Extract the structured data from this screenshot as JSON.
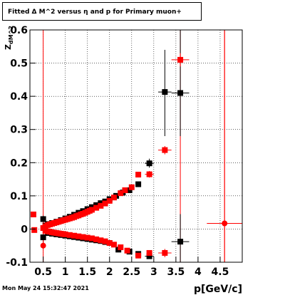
{
  "header": {
    "title": "Fitted Δ M^2 versus η and p for Primary muon+"
  },
  "footer": {
    "timestamp": "Mon May 24 15:32:47 2021"
  },
  "colors": {
    "black_series": "#000000",
    "red_series": "#ff0000",
    "grid": "#000000"
  },
  "chart_data": {
    "type": "scatter",
    "xlabel": "p[GeV/c]",
    "ylabel": "Z_{dM^2}",
    "xlim": [
      0.2,
      5.0
    ],
    "ylim": [
      -0.1,
      0.6
    ],
    "xticks": [
      0.5,
      1,
      1.5,
      2,
      2.5,
      3,
      3.5,
      4,
      4.5
    ],
    "xtick_labels": [
      "0.5",
      "1",
      "1.5",
      "2",
      "2.5",
      "3",
      "3.5",
      "4",
      "4.5"
    ],
    "yticks": [
      -0.1,
      0,
      0.1,
      0.2,
      0.3,
      0.4,
      0.5,
      0.6
    ],
    "ytick_labels": [
      "-0.1",
      "0",
      "0.1",
      "0.2",
      "0.3",
      "0.4",
      "0.5",
      "0.6"
    ],
    "grid": true,
    "vlines": [
      {
        "x": 0.5,
        "color": "red"
      },
      {
        "x": 3.6,
        "color": "red"
      },
      {
        "x": 4.6,
        "color": "red"
      }
    ],
    "series": [
      {
        "color": "black",
        "marker": "square",
        "points": [
          {
            "x": 0.5,
            "y": 0.03
          },
          {
            "x": 0.55,
            "y": 0.01
          },
          {
            "x": 0.6,
            "y": 0.015
          },
          {
            "x": 0.7,
            "y": 0.018
          },
          {
            "x": 0.8,
            "y": 0.022
          },
          {
            "x": 0.9,
            "y": 0.027
          },
          {
            "x": 1.0,
            "y": 0.032
          },
          {
            "x": 1.1,
            "y": 0.037
          },
          {
            "x": 1.2,
            "y": 0.043
          },
          {
            "x": 1.3,
            "y": 0.049
          },
          {
            "x": 1.4,
            "y": 0.054
          },
          {
            "x": 1.5,
            "y": 0.06
          },
          {
            "x": 1.6,
            "y": 0.066
          },
          {
            "x": 1.7,
            "y": 0.072
          },
          {
            "x": 1.8,
            "y": 0.078
          },
          {
            "x": 1.9,
            "y": 0.083
          },
          {
            "x": 2.0,
            "y": 0.09
          },
          {
            "x": 2.15,
            "y": 0.1
          },
          {
            "x": 2.3,
            "y": 0.11
          },
          {
            "x": 2.45,
            "y": 0.117
          },
          {
            "x": 2.65,
            "y": 0.135
          },
          {
            "x": 2.9,
            "y": 0.198
          },
          {
            "x": 3.25,
            "y": 0.413
          },
          {
            "x": 3.6,
            "y": 0.41
          },
          {
            "x": 0.5,
            "y": -0.025
          },
          {
            "x": 0.6,
            "y": -0.012
          },
          {
            "x": 0.7,
            "y": -0.014
          },
          {
            "x": 0.8,
            "y": -0.016
          },
          {
            "x": 0.9,
            "y": -0.018
          },
          {
            "x": 1.0,
            "y": -0.02
          },
          {
            "x": 1.1,
            "y": -0.022
          },
          {
            "x": 1.2,
            "y": -0.024
          },
          {
            "x": 1.3,
            "y": -0.026
          },
          {
            "x": 1.4,
            "y": -0.028
          },
          {
            "x": 1.5,
            "y": -0.03
          },
          {
            "x": 1.6,
            "y": -0.032
          },
          {
            "x": 1.7,
            "y": -0.034
          },
          {
            "x": 1.8,
            "y": -0.036
          },
          {
            "x": 1.9,
            "y": -0.039
          },
          {
            "x": 2.0,
            "y": -0.042
          },
          {
            "x": 2.2,
            "y": -0.062
          },
          {
            "x": 2.45,
            "y": -0.068
          },
          {
            "x": 2.65,
            "y": -0.075
          },
          {
            "x": 2.9,
            "y": -0.082
          },
          {
            "x": 3.6,
            "y": -0.038
          }
        ]
      },
      {
        "color": "red",
        "marker": "square",
        "points": [
          {
            "x": 0.5,
            "y": 0.003
          },
          {
            "x": 0.55,
            "y": 0.008
          },
          {
            "x": 0.6,
            "y": 0.012
          },
          {
            "x": 0.65,
            "y": 0.014
          },
          {
            "x": 0.7,
            "y": 0.016
          },
          {
            "x": 0.75,
            "y": 0.018
          },
          {
            "x": 0.8,
            "y": 0.02
          },
          {
            "x": 0.85,
            "y": 0.022
          },
          {
            "x": 0.9,
            "y": 0.024
          },
          {
            "x": 0.95,
            "y": 0.026
          },
          {
            "x": 1.0,
            "y": 0.028
          },
          {
            "x": 1.05,
            "y": 0.03
          },
          {
            "x": 1.1,
            "y": 0.032
          },
          {
            "x": 1.15,
            "y": 0.034
          },
          {
            "x": 1.2,
            "y": 0.036
          },
          {
            "x": 1.25,
            "y": 0.039
          },
          {
            "x": 1.3,
            "y": 0.041
          },
          {
            "x": 1.35,
            "y": 0.044
          },
          {
            "x": 1.4,
            "y": 0.046
          },
          {
            "x": 1.45,
            "y": 0.049
          },
          {
            "x": 1.5,
            "y": 0.052
          },
          {
            "x": 1.55,
            "y": 0.055
          },
          {
            "x": 1.6,
            "y": 0.058
          },
          {
            "x": 1.7,
            "y": 0.064
          },
          {
            "x": 1.8,
            "y": 0.07
          },
          {
            "x": 1.9,
            "y": 0.077
          },
          {
            "x": 2.0,
            "y": 0.085
          },
          {
            "x": 2.1,
            "y": 0.095
          },
          {
            "x": 2.25,
            "y": 0.108
          },
          {
            "x": 2.35,
            "y": 0.117
          },
          {
            "x": 2.5,
            "y": 0.126
          },
          {
            "x": 2.65,
            "y": 0.164
          },
          {
            "x": 2.9,
            "y": 0.165
          },
          {
            "x": 3.25,
            "y": 0.238
          },
          {
            "x": 3.6,
            "y": 0.51
          },
          {
            "x": 0.28,
            "y": 0.044
          },
          {
            "x": 0.3,
            "y": -0.003
          },
          {
            "x": 0.5,
            "y": -0.05
          },
          {
            "x": 0.55,
            "y": -0.005
          },
          {
            "x": 0.6,
            "y": -0.007
          },
          {
            "x": 0.65,
            "y": -0.008
          },
          {
            "x": 0.7,
            "y": -0.01
          },
          {
            "x": 0.75,
            "y": -0.011
          },
          {
            "x": 0.8,
            "y": -0.012
          },
          {
            "x": 0.85,
            "y": -0.013
          },
          {
            "x": 0.9,
            "y": -0.014
          },
          {
            "x": 0.95,
            "y": -0.015
          },
          {
            "x": 1.0,
            "y": -0.016
          },
          {
            "x": 1.1,
            "y": -0.018
          },
          {
            "x": 1.2,
            "y": -0.02
          },
          {
            "x": 1.3,
            "y": -0.022
          },
          {
            "x": 1.4,
            "y": -0.024
          },
          {
            "x": 1.5,
            "y": -0.026
          },
          {
            "x": 1.6,
            "y": -0.028
          },
          {
            "x": 1.7,
            "y": -0.031
          },
          {
            "x": 1.8,
            "y": -0.034
          },
          {
            "x": 1.9,
            "y": -0.037
          },
          {
            "x": 2.0,
            "y": -0.042
          },
          {
            "x": 2.1,
            "y": -0.047
          },
          {
            "x": 2.25,
            "y": -0.055
          },
          {
            "x": 2.4,
            "y": -0.065
          },
          {
            "x": 2.65,
            "y": -0.08
          },
          {
            "x": 2.9,
            "y": -0.072
          },
          {
            "x": 3.25,
            "y": -0.072
          },
          {
            "x": 4.6,
            "y": 0.017
          }
        ]
      }
    ],
    "error_bars": [
      {
        "color": "black",
        "x": 3.25,
        "y_low": 0.28,
        "y_high": 0.54,
        "x_low": 3.1,
        "x_high": 3.4
      },
      {
        "color": "black",
        "x": 3.6,
        "y_low": 0.28,
        "y_high": 0.6,
        "x_low": 3.4,
        "x_high": 3.8
      },
      {
        "color": "black",
        "x": 3.6,
        "y_low": -0.1,
        "y_high": 0.045,
        "x_low": 3.4,
        "x_high": 3.8
      },
      {
        "color": "black",
        "x": 2.9,
        "y_low": 0.185,
        "y_high": 0.212,
        "x_low": 2.8,
        "x_high": 3.0
      },
      {
        "color": "black",
        "x": 2.9,
        "y_low": -0.09,
        "y_high": -0.07,
        "x_low": 2.8,
        "x_high": 3.0
      },
      {
        "color": "black",
        "x": 0.5,
        "y_low": -0.05,
        "y_high": 0.04,
        "x_low": 0.45,
        "x_high": 0.55
      },
      {
        "color": "red",
        "x": 4.6,
        "y_low": -0.1,
        "y_high": 0.6,
        "x_low": 4.2,
        "x_high": 5.0
      },
      {
        "color": "red",
        "x": 3.6,
        "y_low": 0.49,
        "y_high": 0.53,
        "x_low": 3.4,
        "x_high": 3.8
      },
      {
        "color": "red",
        "x": 3.25,
        "y_low": -0.085,
        "y_high": -0.06,
        "x_low": 3.1,
        "x_high": 3.4
      },
      {
        "color": "red",
        "x": 3.25,
        "y_low": 0.225,
        "y_high": 0.25,
        "x_low": 3.1,
        "x_high": 3.4
      },
      {
        "color": "red",
        "x": 2.9,
        "y_low": 0.155,
        "y_high": 0.175,
        "x_low": 2.8,
        "x_high": 3.0
      },
      {
        "color": "red",
        "x": 0.5,
        "y_low": -0.06,
        "y_high": 0.03,
        "x_low": 0.45,
        "x_high": 0.55
      }
    ]
  }
}
